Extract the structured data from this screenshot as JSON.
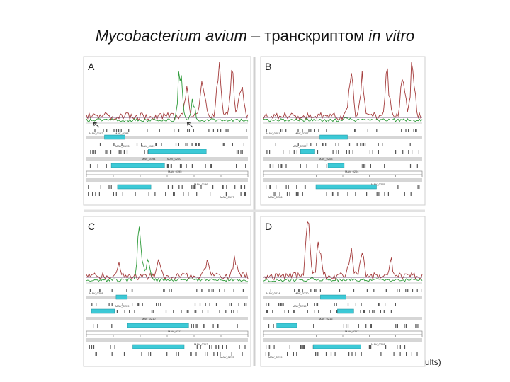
{
  "title": {
    "species": "Mycobacterium avium",
    "dash": " – транскриптом ",
    "condition": "in vitro"
  },
  "panels": [
    {
      "id": "A",
      "gene_labels": [
        "MAV_0192",
        "MAV_0193",
        "MAV_0194",
        "MAV_0195",
        "MAV_0196",
        "MAV_0197",
        "MAV_0198",
        "MAV_0199",
        "MAV_0200"
      ]
    },
    {
      "id": "B",
      "gene_labels": [
        "MAV_0201",
        "MAV_0202",
        "MAV_0203",
        "MAV_0204",
        "MAV_0205",
        "MAV_0206",
        "MAV_0207"
      ]
    },
    {
      "id": "C",
      "gene_labels": [
        "MAV_0208",
        "MAV_0209",
        "MAV_0210",
        "MAV_0211",
        "MAV_0212",
        "MAV_0213"
      ]
    },
    {
      "id": "D",
      "gene_labels": [
        "MAV_0214",
        "MAV_0215",
        "MAV_0216",
        "MAV_0217",
        "MAV_0218",
        "MAV_0219",
        "MAV_0220"
      ]
    }
  ],
  "colors": {
    "trace_red": "#a33a3a",
    "trace_green": "#2e9b3a",
    "gene_box": "#3cc9d6",
    "track_gray": "#d6d6d6",
    "baseline": "#5a3a6a"
  },
  "footer_fragment": "ults)"
}
